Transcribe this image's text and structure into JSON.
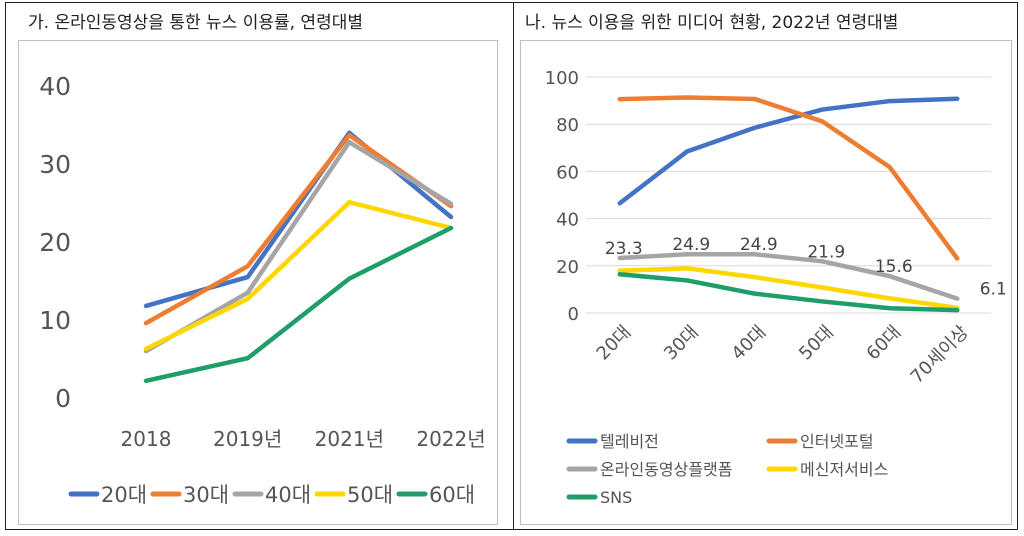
{
  "panels": {
    "left_title": "가. 온라인동영상을 통한 뉴스 이용률, 연령대별",
    "right_title": "나. 뉴스 이용을 위한 미디어 현황, 2022년 연령대별"
  },
  "chart_data": [
    {
      "type": "line",
      "title": "가. 온라인동영상을 통한 뉴스 이용률, 연령대별",
      "categories": [
        "2018",
        "2019년",
        "2021년",
        "2022년"
      ],
      "ylim": [
        0,
        40
      ],
      "yticks": [
        "0",
        "10",
        "20",
        "30",
        "40"
      ],
      "grid": false,
      "legend_position": "bottom",
      "series": [
        {
          "name": "20대",
          "color": "#4472C4",
          "values": [
            11.8,
            15.5,
            34.0,
            23.2
          ]
        },
        {
          "name": "30대",
          "color": "#ED7D31",
          "values": [
            9.6,
            16.9,
            33.7,
            24.6
          ]
        },
        {
          "name": "40대",
          "color": "#A5A5A5",
          "values": [
            6.0,
            13.5,
            32.8,
            24.9
          ]
        },
        {
          "name": "50대",
          "color": "#FFD700",
          "values": [
            6.3,
            12.7,
            25.1,
            21.8
          ]
        },
        {
          "name": "60대",
          "color": "#1F9E6A",
          "values": [
            2.2,
            5.1,
            15.3,
            21.8
          ]
        }
      ]
    },
    {
      "type": "line",
      "title": "나. 뉴스 이용을 위한 미디어 현황, 2022년 연령대별",
      "categories": [
        "20대",
        "30대",
        "40대",
        "50대",
        "60대",
        "70세이상"
      ],
      "ylim": [
        0,
        100
      ],
      "yticks": [
        "0",
        "20",
        "40",
        "60",
        "80",
        "100"
      ],
      "grid": true,
      "legend_position": "bottom",
      "series": [
        {
          "name": "텔레비전",
          "color": "#4472C4",
          "values": [
            46.5,
            68.5,
            78.5,
            86.2,
            89.8,
            90.8
          ]
        },
        {
          "name": "인터넷포털",
          "color": "#ED7D31",
          "values": [
            90.6,
            91.3,
            90.7,
            81.2,
            61.8,
            23.1
          ]
        },
        {
          "name": "온라인동영상플랫폼",
          "color": "#A5A5A5",
          "values": [
            23.3,
            24.9,
            24.9,
            21.9,
            15.6,
            6.1
          ],
          "data_labels": [
            "23.3",
            "24.9",
            "24.9",
            "21.9",
            "15.6",
            "6.1"
          ]
        },
        {
          "name": "메신저서비스",
          "color": "#FFD700",
          "values": [
            17.9,
            18.9,
            15.2,
            10.8,
            6.2,
            2.2
          ]
        },
        {
          "name": "SNS",
          "color": "#1F9E6A",
          "values": [
            16.4,
            13.8,
            8.2,
            4.9,
            2.0,
            1.2
          ]
        }
      ]
    }
  ]
}
